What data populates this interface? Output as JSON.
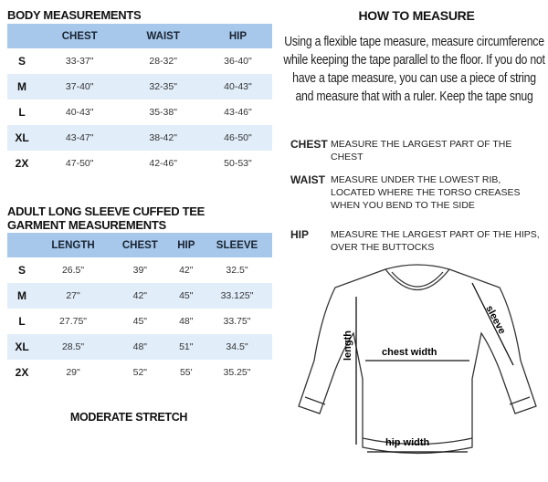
{
  "body": {
    "title": "BODY MEASUREMENTS",
    "headers": [
      "",
      "CHEST",
      "WAIST",
      "HIP"
    ],
    "rows": [
      [
        "S",
        "33-37\"",
        "28-32\"",
        "36-40\""
      ],
      [
        "M",
        "37-40\"",
        "32-35\"",
        "40-43\""
      ],
      [
        "L",
        "40-43\"",
        "35-38\"",
        "43-46\""
      ],
      [
        "XL",
        "43-47\"",
        "38-42\"",
        "46-50\""
      ],
      [
        "2X",
        "47-50\"",
        "42-46\"",
        "50-53\""
      ]
    ]
  },
  "garment": {
    "title1": "ADULT LONG SLEEVE CUFFED TEE",
    "title2": "GARMENT MEASUREMENTS",
    "headers": [
      "",
      "LENGTH",
      "CHEST",
      "HIP",
      "SLEEVE"
    ],
    "rows": [
      [
        "S",
        "26.5\"",
        "39\"",
        "42\"",
        "32.5\""
      ],
      [
        "M",
        "27\"",
        "42\"",
        "45\"",
        "33.125\""
      ],
      [
        "L",
        "27.75\"",
        "45\"",
        "48\"",
        "33.75\""
      ],
      [
        "XL",
        "28.5\"",
        "48\"",
        "51\"",
        "34.5\""
      ],
      [
        "2X",
        "29\"",
        "52\"",
        "55'",
        "35.25\""
      ]
    ]
  },
  "stretch": "MODERATE STRETCH",
  "howto": {
    "title": "HOW TO MEASURE",
    "text": "Using a flexible tape measure, measure circumference while keeping the tape parallel to the floor.  If you do not have a tape measure, you can use a piece of string and measure that with a ruler. Keep the tape snug",
    "items": [
      {
        "label": "CHEST",
        "desc": "MEASURE THE LARGEST PART OF THE CHEST"
      },
      {
        "label": "WAIST",
        "desc": "MEASURE UNDER THE LOWEST RIB, LOCATED WHERE THE TORSO CREASES WHEN YOU BEND TO THE SIDE"
      },
      {
        "label": "HIP",
        "desc": "MEASURE THE LARGEST PART OF THE HIPS, OVER THE BUTTOCKS"
      }
    ]
  },
  "diagram": {
    "length": "length",
    "chest": "chest width",
    "sleeve": "sleeve",
    "hip": "hip width"
  }
}
